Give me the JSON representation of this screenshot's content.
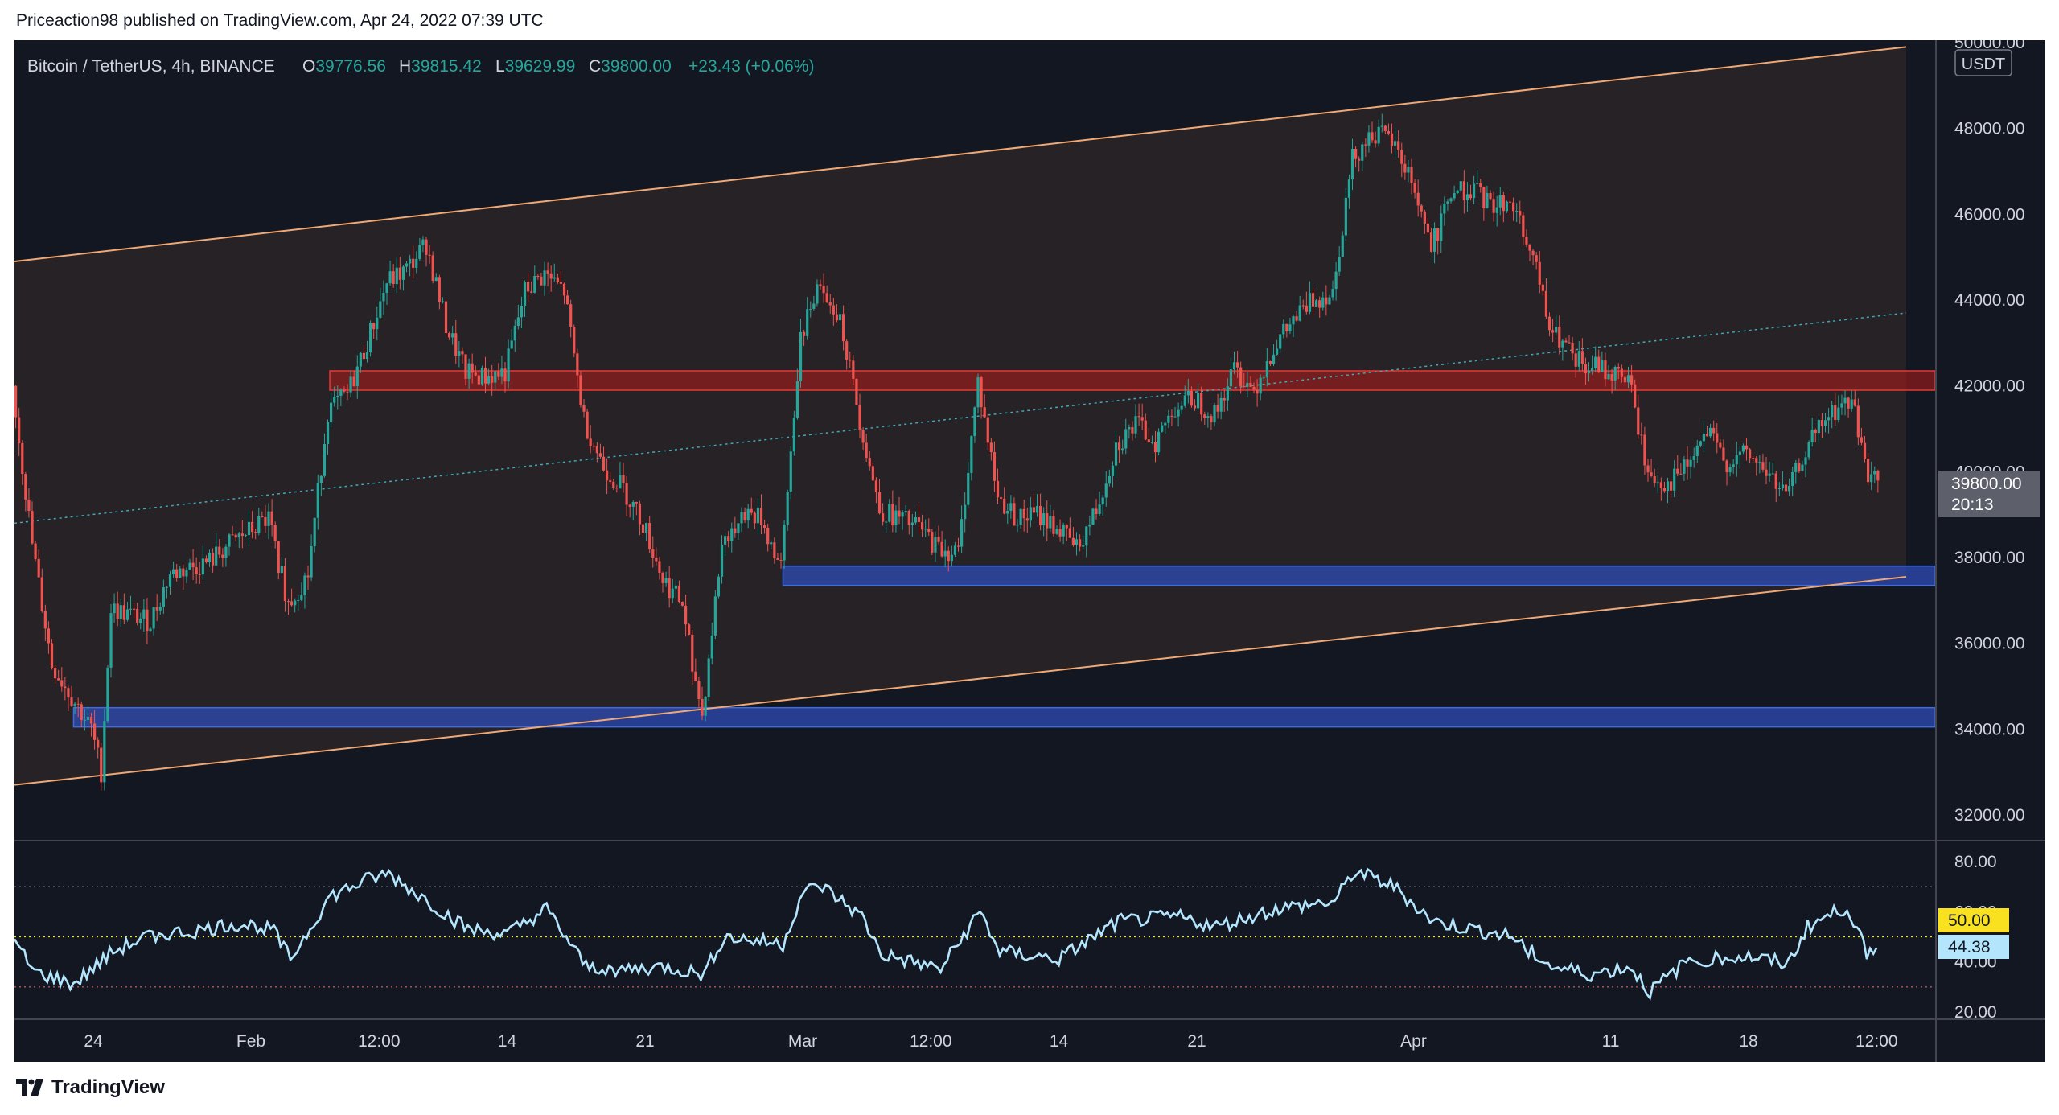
{
  "publish_line": "Priceaction98 published on TradingView.com, Apr 24, 2022 07:39 UTC",
  "brand": "TradingView",
  "symbol": {
    "title": "Bitcoin / TetherUS, 4h, BINANCE",
    "open": "39776.56",
    "high": "39815.42",
    "low": "39629.99",
    "close": "39800.00",
    "change": "+23.43 (+0.06%)"
  },
  "price_axis": {
    "currency": "USDT",
    "ticks": [
      "50000.00",
      "48000.00",
      "46000.00",
      "44000.00",
      "42000.00",
      "40000.00",
      "38000.00",
      "36000.00",
      "34000.00",
      "32000.00"
    ],
    "last_price": "39800.00",
    "countdown": "20:13"
  },
  "rsi_axis": {
    "ticks": [
      "80.00",
      "60.00",
      "40.00",
      "20.00"
    ],
    "mid_label": "50.00",
    "current_label": "44.38"
  },
  "time_axis": {
    "ticks": [
      "24",
      "Feb",
      "12:00",
      "14",
      "21",
      "Mar",
      "12:00",
      "14",
      "21",
      "Apr",
      "11",
      "18",
      "12:00"
    ]
  },
  "colors": {
    "background": "#131722",
    "up_candle": "#26a69a",
    "down_candle": "#ef5350",
    "channel_line": "#f0a875",
    "resistance_zone": "#b71c1c",
    "support_zone": "#2f4fbf",
    "rsi_line": "#b3e5fc",
    "rsi_mid": "#f9e11f"
  },
  "chart_data": {
    "type": "candlestick",
    "timeframe": "4h",
    "ylim": [
      32000,
      50000
    ],
    "close_path": [
      [
        "Jan 20",
        42000
      ],
      [
        "Jan 21",
        38300
      ],
      [
        "Jan 22",
        35500
      ],
      [
        "Jan 24",
        34000
      ],
      [
        "Jan 24",
        33000
      ],
      [
        "Jan 25",
        36800
      ],
      [
        "Jan 27",
        36500
      ],
      [
        "Jan 28",
        37600
      ],
      [
        "Jan 30",
        37900
      ],
      [
        "Jan 31",
        38300
      ],
      [
        "Feb 1",
        38600
      ],
      [
        "Feb 2",
        38900
      ],
      [
        "Feb 3",
        36900
      ],
      [
        "Feb 4",
        37600
      ],
      [
        "Feb 5",
        41400
      ],
      [
        "Feb 6",
        41800
      ],
      [
        "Feb 7",
        43000
      ],
      [
        "Feb 8",
        44400
      ],
      [
        "Feb 9",
        44700
      ],
      [
        "Feb 10",
        45300
      ],
      [
        "Feb 11",
        43400
      ],
      [
        "Feb 12",
        42300
      ],
      [
        "Feb 13",
        42200
      ],
      [
        "Feb 14",
        42300
      ],
      [
        "Feb 15",
        44200
      ],
      [
        "Feb 16",
        44600
      ],
      [
        "Feb 17",
        44200
      ],
      [
        "Feb 18",
        41200
      ],
      [
        "Feb 19",
        40100
      ],
      [
        "Feb 20",
        39600
      ],
      [
        "Feb 21",
        38800
      ],
      [
        "Feb 22",
        37500
      ],
      [
        "Feb 23",
        36900
      ],
      [
        "Feb 24",
        34300
      ],
      [
        "Feb 25",
        38300
      ],
      [
        "Feb 26",
        39100
      ],
      [
        "Feb 27",
        38900
      ],
      [
        "Feb 28",
        37700
      ],
      [
        "Mar 1",
        43200
      ],
      [
        "Mar 2",
        44500
      ],
      [
        "Mar 3",
        43600
      ],
      [
        "Mar 4",
        41200
      ],
      [
        "Mar 5",
        39100
      ],
      [
        "Mar 6",
        38900
      ],
      [
        "Mar 7",
        38700
      ],
      [
        "Mar 8",
        38200
      ],
      [
        "Mar 9",
        38100
      ],
      [
        "Mar 10",
        42100
      ],
      [
        "Mar 11",
        39400
      ],
      [
        "Mar 12",
        38900
      ],
      [
        "Mar 13",
        39000
      ],
      [
        "Mar 14",
        38700
      ],
      [
        "Mar 15",
        38200
      ],
      [
        "Mar 16",
        39100
      ],
      [
        "Mar 17",
        40600
      ],
      [
        "Mar 18",
        41100
      ],
      [
        "Mar 19",
        40700
      ],
      [
        "Mar 20",
        41500
      ],
      [
        "Mar 21",
        41700
      ],
      [
        "Mar 22",
        41300
      ],
      [
        "Mar 23",
        42400
      ],
      [
        "Mar 24",
        41900
      ],
      [
        "Mar 25",
        42900
      ],
      [
        "Mar 26",
        43500
      ],
      [
        "Mar 27",
        44000
      ],
      [
        "Mar 28",
        44200
      ],
      [
        "Mar 29",
        47300
      ],
      [
        "Mar 30",
        47900
      ],
      [
        "Mar 31",
        47700
      ],
      [
        "Apr 1",
        46800
      ],
      [
        "Apr 2",
        45200
      ],
      [
        "Apr 3",
        46500
      ],
      [
        "Apr 4",
        46600
      ],
      [
        "Apr 5",
        46200
      ],
      [
        "Apr 6",
        46300
      ],
      [
        "Apr 7",
        45400
      ],
      [
        "Apr 8",
        43300
      ],
      [
        "Apr 9",
        42800
      ],
      [
        "Apr 10",
        42500
      ],
      [
        "Apr 11",
        42300
      ],
      [
        "Apr 12",
        42200
      ],
      [
        "Apr 13",
        39900
      ],
      [
        "Apr 14",
        39700
      ],
      [
        "Apr 15",
        40100
      ],
      [
        "Apr 16",
        40900
      ],
      [
        "Apr 17",
        40200
      ],
      [
        "Apr 18",
        40400
      ],
      [
        "Apr 19",
        40000
      ],
      [
        "Apr 20",
        39400
      ],
      [
        "Apr 21",
        40500
      ],
      [
        "Apr 22",
        41200
      ],
      [
        "Apr 23",
        41600
      ],
      [
        "Apr 23",
        41500
      ],
      [
        "Apr 24",
        40100
      ],
      [
        "Apr 24",
        39800
      ]
    ],
    "zones": [
      {
        "kind": "resistance",
        "from": 41900,
        "to": 42350,
        "start": "Feb 5"
      },
      {
        "kind": "support",
        "from": 37350,
        "to": 37800,
        "start": "Feb 28"
      },
      {
        "kind": "support",
        "from": 34050,
        "to": 34500,
        "start": "Jan 23"
      }
    ],
    "channel": {
      "upper": [
        [
          "Jan 20",
          44900
        ],
        [
          "Apr 26",
          49900
        ]
      ],
      "lower": [
        [
          "Jan 20",
          32700
        ],
        [
          "Apr 26",
          37550
        ]
      ],
      "median": [
        [
          "Jan 20",
          38800
        ],
        [
          "Apr 26",
          43700
        ]
      ]
    },
    "rsi": {
      "ylim": [
        20,
        80
      ],
      "levels": [
        70,
        50,
        30
      ],
      "series": [
        [
          "Jan 20",
          48
        ],
        [
          "Jan 21",
          36
        ],
        [
          "Jan 23",
          31
        ],
        [
          "Jan 25",
          44
        ],
        [
          "Jan 27",
          51
        ],
        [
          "Jan 29",
          52
        ],
        [
          "Jan 31",
          55
        ],
        [
          "Feb 2",
          54
        ],
        [
          "Feb 3",
          41
        ],
        [
          "Feb 5",
          66
        ],
        [
          "Feb 7",
          73
        ],
        [
          "Feb 8",
          75
        ],
        [
          "Feb 10",
          64
        ],
        [
          "Feb 12",
          53
        ],
        [
          "Feb 14",
          51
        ],
        [
          "Feb 16",
          61
        ],
        [
          "Feb 18",
          38
        ],
        [
          "Feb 20",
          37
        ],
        [
          "Feb 22",
          38
        ],
        [
          "Feb 24",
          35
        ],
        [
          "Feb 25",
          50
        ],
        [
          "Feb 28",
          47
        ],
        [
          "Mar 1",
          68
        ],
        [
          "Mar 2",
          70
        ],
        [
          "Mar 4",
          58
        ],
        [
          "Mar 5",
          43
        ],
        [
          "Mar 8",
          37
        ],
        [
          "Mar 10",
          60
        ],
        [
          "Mar 11",
          44
        ],
        [
          "Mar 14",
          41
        ],
        [
          "Mar 17",
          56
        ],
        [
          "Mar 20",
          58
        ],
        [
          "Mar 22",
          54
        ],
        [
          "Mar 25",
          61
        ],
        [
          "Mar 28",
          64
        ],
        [
          "Mar 29",
          76
        ],
        [
          "Mar 31",
          70
        ],
        [
          "Apr 2",
          56
        ],
        [
          "Apr 4",
          53
        ],
        [
          "Apr 6",
          50
        ],
        [
          "Apr 8",
          38
        ],
        [
          "Apr 10",
          35
        ],
        [
          "Apr 12",
          38
        ],
        [
          "Apr 13",
          28
        ],
        [
          "Apr 15",
          41
        ],
        [
          "Apr 18",
          42
        ],
        [
          "Apr 20",
          39
        ],
        [
          "Apr 21",
          54
        ],
        [
          "Apr 22",
          58
        ],
        [
          "Apr 23",
          62
        ],
        [
          "Apr 24",
          44
        ]
      ]
    }
  }
}
